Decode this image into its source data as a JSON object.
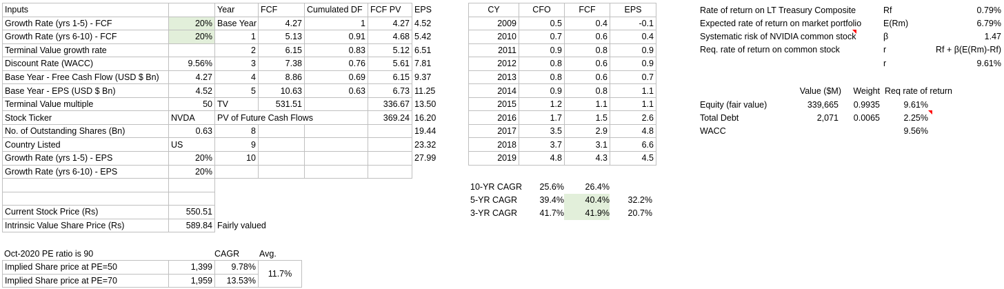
{
  "inputs": {
    "rows": [
      {
        "label": "Inputs",
        "value": ""
      },
      {
        "label": "Growth Rate (yrs 1-5) - FCF",
        "value": "20%"
      },
      {
        "label": "Growth Rate (yrs 6-10) - FCF",
        "value": "20%"
      },
      {
        "label": "Terminal Value growth rate",
        "value": ""
      },
      {
        "label": "Discount Rate (WACC)",
        "value": "9.56%"
      },
      {
        "label": "Base Year - Free Cash Flow (USD $ Bn)",
        "value": "4.27"
      },
      {
        "label": "Base Year - EPS (USD $ Bn)",
        "value": "4.52"
      },
      {
        "label": "Terminal Value multiple",
        "value": "50"
      },
      {
        "label": "Stock Ticker",
        "value": "NVDA"
      },
      {
        "label": "No. of Outstanding Shares (Bn)",
        "value": "0.63"
      },
      {
        "label": "Country Listed",
        "value": "US"
      },
      {
        "label": "Growth Rate (yrs 1-5) - EPS",
        "value": "20%"
      },
      {
        "label": "Growth Rate (yrs 6-10) - EPS",
        "value": "20%"
      },
      {
        "label": "",
        "value": ""
      },
      {
        "label": "",
        "value": ""
      },
      {
        "label": "Current Stock Price (Rs)",
        "value": "550.51"
      },
      {
        "label": "Intrinsic Value Share Price (Rs)",
        "value": "589.84"
      }
    ]
  },
  "dcf": {
    "headers": [
      "Year",
      "FCF",
      "Cumulated DF",
      "FCF PV",
      "EPS"
    ],
    "rows": [
      [
        "Base Year",
        "4.27",
        "1",
        "4.27",
        "4.52"
      ],
      [
        "1",
        "5.13",
        "0.91",
        "4.68",
        "5.42"
      ],
      [
        "2",
        "6.15",
        "0.83",
        "5.12",
        "6.51"
      ],
      [
        "3",
        "7.38",
        "0.76",
        "5.61",
        "7.81"
      ],
      [
        "4",
        "8.86",
        "0.69",
        "6.15",
        "9.37"
      ],
      [
        "5",
        "10.63",
        "0.63",
        "6.73",
        "11.25"
      ],
      [
        "TV",
        "531.51",
        "",
        "336.67",
        "13.50"
      ],
      [
        "PV of Future Cash Flows",
        "",
        "",
        "369.24",
        "16.20"
      ],
      [
        "8",
        "",
        "",
        "",
        "19.44"
      ],
      [
        "9",
        "",
        "",
        "",
        "23.32"
      ],
      [
        "10",
        "",
        "",
        "",
        "27.99"
      ]
    ],
    "verdict": "Fairly valued"
  },
  "history": {
    "headers": [
      "CY",
      "CFO",
      "FCF",
      "EPS"
    ],
    "rows": [
      [
        "2009",
        "0.5",
        "0.4",
        "-0.1"
      ],
      [
        "2010",
        "0.7",
        "0.6",
        "0.4"
      ],
      [
        "2011",
        "0.9",
        "0.8",
        "0.9"
      ],
      [
        "2012",
        "0.8",
        "0.6",
        "0.9"
      ],
      [
        "2013",
        "0.8",
        "0.6",
        "0.7"
      ],
      [
        "2014",
        "0.9",
        "0.8",
        "1.1"
      ],
      [
        "2015",
        "1.2",
        "1.1",
        "1.1"
      ],
      [
        "2016",
        "1.7",
        "1.5",
        "2.6"
      ],
      [
        "2017",
        "3.5",
        "2.9",
        "4.8"
      ],
      [
        "2018",
        "3.7",
        "3.1",
        "6.6"
      ],
      [
        "2019",
        "4.8",
        "4.3",
        "4.5"
      ]
    ],
    "cagr": [
      {
        "label": "10-YR CAGR",
        "cfo": "25.6%",
        "fcf": "26.4%",
        "eps": ""
      },
      {
        "label": "5-YR CAGR",
        "cfo": "39.4%",
        "fcf": "40.4%",
        "eps": "32.2%"
      },
      {
        "label": "3-YR CAGR",
        "cfo": "41.7%",
        "fcf": "41.9%",
        "eps": "20.7%"
      }
    ]
  },
  "capm": {
    "rows": [
      {
        "label": "Rate of return on LT Treasury Composite",
        "sym": "Rf",
        "value": "0.79%"
      },
      {
        "label": "Expected rate of return on market portfolio",
        "sym": "E(Rm)",
        "value": "6.79%"
      },
      {
        "label": "Systematic risk of NVIDIA common stock",
        "sym": "β",
        "value": "1.47"
      },
      {
        "label": "Req. rate of return on common stock",
        "sym": "r",
        "value": "Rf + β(E(Rm)-Rf)"
      },
      {
        "label": "",
        "sym": "r",
        "value": "9.61%"
      }
    ]
  },
  "wacc": {
    "headers": [
      "Value ($M)",
      "Weight",
      "Req rate of  return"
    ],
    "rows": [
      {
        "label": "Equity (fair value)",
        "value": "339,665",
        "weight": "0.9935",
        "rate": "9.61%"
      },
      {
        "label": "Total Debt",
        "value": "2,071",
        "weight": "0.0065",
        "rate": "2.25%"
      },
      {
        "label": "WACC",
        "value": "",
        "weight": "",
        "rate": "9.56%"
      }
    ]
  },
  "pe": {
    "note": "Oct-2020 PE ratio is 90",
    "cagr_header": "CAGR",
    "avg_header": "Avg.",
    "rows": [
      {
        "label": "Implied Share price at PE=50",
        "price": "1,399",
        "cagr": "9.78%"
      },
      {
        "label": "Implied Share price at PE=70",
        "price": "1,959",
        "cagr": "13.53%"
      }
    ],
    "avg": "11.7%"
  }
}
